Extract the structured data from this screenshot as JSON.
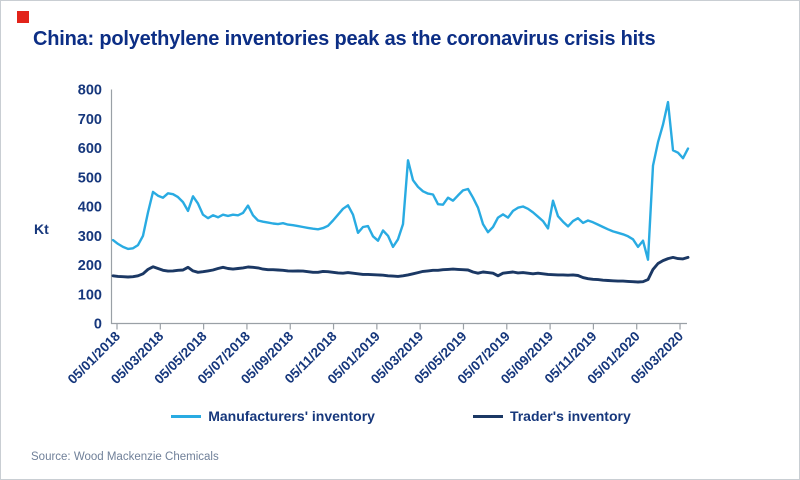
{
  "card": {
    "title": "China: polyethylene inventories peak as the coronavirus crisis hits",
    "y_axis_unit": "Kt",
    "source": "Source: Wood Mackenzie Chemicals"
  },
  "colors": {
    "accent_red": "#e2231a",
    "title_text": "#0c2e85",
    "axis_text": "#16377c",
    "axis_line": "#9aa0a6",
    "manufacturers_line": "#29abe2",
    "traders_line": "#1b3864",
    "source_text": "#708099"
  },
  "legend": {
    "items": [
      {
        "label": "Manufacturers' inventory",
        "color": "#29abe2"
      },
      {
        "label": "Trader's inventory",
        "color": "#1b3864"
      }
    ]
  },
  "chart_data": {
    "type": "line",
    "title": "China: polyethylene inventories peak as the coronavirus crisis hits",
    "xlabel": "",
    "ylabel": "Kt",
    "unit": "Kt",
    "ylim": [
      0,
      800
    ],
    "y_ticks": [
      0,
      100,
      200,
      300,
      400,
      500,
      600,
      700,
      800
    ],
    "grid": false,
    "legend_position": "bottom",
    "x_frequency": "weekly",
    "x_start_label": "05/01/2018",
    "x_end_label": "05/03/2020",
    "x_tick_labels": [
      "05/01/2018",
      "05/03/2018",
      "05/05/2018",
      "05/07/2018",
      "05/09/2018",
      "05/11/2018",
      "05/01/2019",
      "05/03/2019",
      "05/05/2019",
      "05/07/2019",
      "05/09/2019",
      "05/11/2019",
      "05/01/2020",
      "05/03/2020"
    ],
    "series": [
      {
        "name": "Manufacturers' inventory",
        "color": "#29abe2",
        "values": [
          285,
          272,
          262,
          255,
          257,
          268,
          300,
          380,
          450,
          437,
          430,
          445,
          442,
          432,
          415,
          385,
          435,
          410,
          372,
          360,
          370,
          363,
          372,
          368,
          372,
          370,
          378,
          403,
          370,
          352,
          348,
          345,
          342,
          340,
          343,
          338,
          336,
          333,
          330,
          327,
          324,
          322,
          326,
          334,
          352,
          372,
          392,
          404,
          372,
          310,
          330,
          333,
          298,
          283,
          318,
          300,
          262,
          288,
          340,
          558,
          490,
          467,
          452,
          444,
          441,
          408,
          406,
          430,
          420,
          438,
          455,
          460,
          430,
          396,
          340,
          312,
          330,
          362,
          373,
          362,
          385,
          396,
          400,
          392,
          380,
          365,
          350,
          325,
          420,
          367,
          348,
          332,
          350,
          360,
          344,
          352,
          346,
          338,
          330,
          322,
          315,
          310,
          305,
          298,
          288,
          262,
          283,
          218,
          540,
          620,
          680,
          757,
          592,
          584,
          565,
          598
        ]
      },
      {
        "name": "Trader's inventory",
        "color": "#1b3864",
        "values": [
          163,
          161,
          160,
          159,
          160,
          163,
          170,
          185,
          194,
          188,
          182,
          179,
          180,
          182,
          183,
          192,
          180,
          175,
          177,
          180,
          183,
          188,
          192,
          188,
          186,
          188,
          190,
          193,
          192,
          190,
          186,
          184,
          184,
          183,
          182,
          180,
          179,
          180,
          179,
          177,
          175,
          175,
          178,
          177,
          175,
          173,
          172,
          174,
          172,
          170,
          168,
          168,
          167,
          166,
          165,
          163,
          162,
          161,
          163,
          166,
          170,
          174,
          178,
          180,
          182,
          182,
          184,
          185,
          186,
          185,
          184,
          183,
          176,
          172,
          176,
          174,
          172,
          163,
          172,
          174,
          176,
          173,
          174,
          172,
          170,
          172,
          170,
          168,
          167,
          166,
          166,
          165,
          166,
          164,
          157,
          153,
          151,
          150,
          148,
          147,
          146,
          145,
          145,
          144,
          143,
          142,
          143,
          150,
          185,
          205,
          215,
          222,
          226,
          222,
          221,
          226
        ]
      }
    ]
  }
}
